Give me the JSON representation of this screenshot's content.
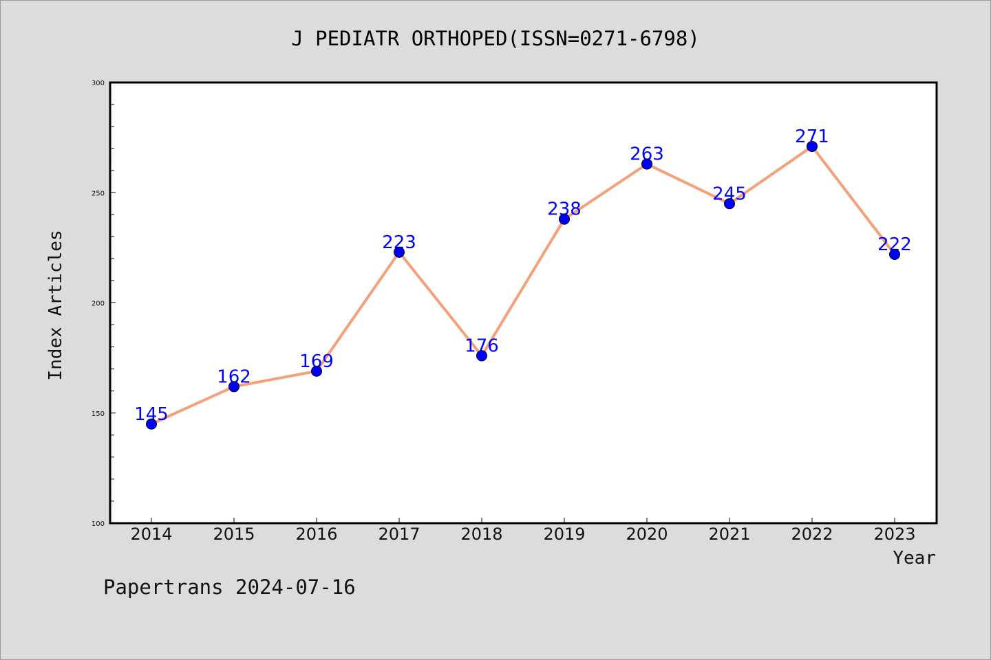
{
  "chart_data": {
    "type": "line",
    "title": "J PEDIATR ORTHOPED(ISSN=0271-6798)",
    "xlabel": "Year",
    "ylabel": "Index Articles",
    "categories": [
      "2014",
      "2015",
      "2016",
      "2017",
      "2018",
      "2019",
      "2020",
      "2021",
      "2022",
      "2023"
    ],
    "series": [
      {
        "values": [
          145,
          162,
          169,
          223,
          176,
          238,
          263,
          245,
          271,
          222
        ]
      }
    ],
    "ylim": [
      100,
      300
    ],
    "yticks": [
      "100",
      "150",
      "200",
      "250",
      "300"
    ],
    "grid": false,
    "line_color": "#f4a07a",
    "marker_color": "#0000ff",
    "label_color": "#0000ff",
    "plot_background": "#ffffff",
    "page_background": "#dcdcdc"
  },
  "footer": {
    "watermark": "Papertrans 2024-07-16"
  }
}
